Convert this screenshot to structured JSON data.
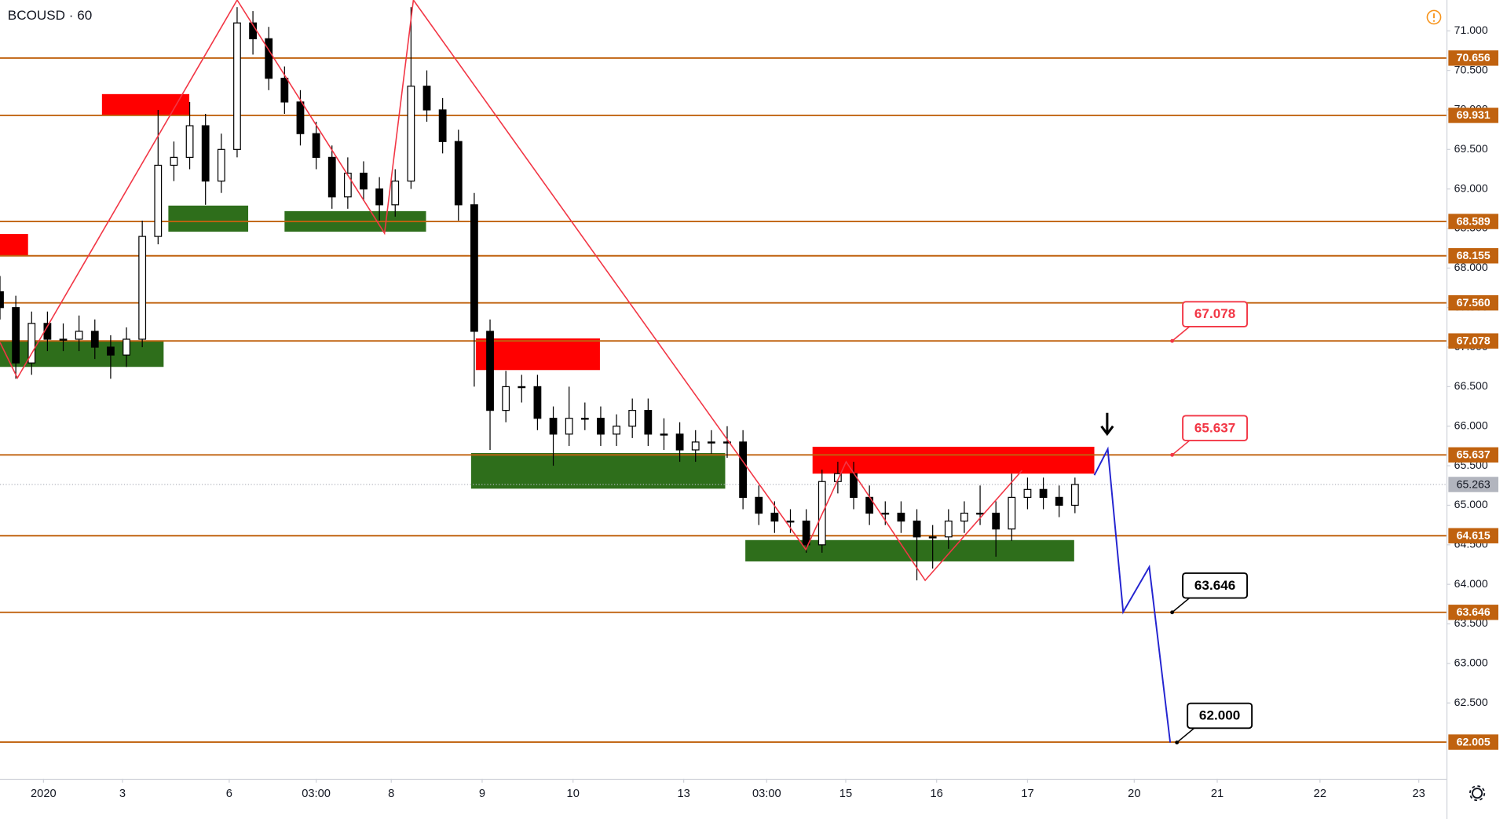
{
  "chart_data": {
    "type": "candlestick",
    "title": "BCOUSD · 60",
    "x": [
      0,
      4,
      8,
      12,
      16,
      20,
      24,
      28,
      32,
      36,
      40,
      44,
      48,
      52,
      56,
      60,
      64,
      68,
      72,
      76,
      80,
      84,
      88,
      92,
      96,
      100,
      104,
      108,
      112,
      116,
      120,
      124,
      128,
      132,
      136,
      140,
      144,
      148,
      152,
      156,
      160,
      164,
      168,
      172,
      176,
      180,
      184,
      188,
      192,
      196,
      200,
      204,
      208,
      212,
      216,
      220,
      224,
      228,
      232,
      236,
      240,
      244,
      248,
      252,
      256,
      260,
      264,
      268,
      272
    ],
    "open": [
      67.7,
      67.5,
      66.8,
      67.3,
      67.1,
      67.1,
      67.2,
      67.0,
      66.9,
      67.1,
      68.4,
      69.3,
      69.4,
      69.8,
      69.1,
      69.5,
      71.1,
      70.9,
      70.4,
      70.1,
      69.7,
      69.4,
      68.9,
      69.2,
      69.0,
      68.8,
      69.1,
      70.3,
      70.0,
      69.6,
      68.8,
      67.2,
      66.2,
      66.5,
      66.5,
      66.1,
      65.9,
      66.1,
      66.1,
      65.9,
      66.0,
      66.2,
      65.9,
      65.9,
      65.7,
      65.8,
      65.8,
      65.8,
      65.1,
      64.9,
      64.8,
      64.8,
      64.5,
      65.3,
      65.4,
      65.1,
      64.9,
      64.9,
      64.8,
      64.6,
      64.6,
      64.8,
      64.9,
      64.9,
      64.7,
      65.1,
      65.2,
      65.1,
      65.0
    ],
    "high": [
      67.9,
      67.65,
      67.45,
      67.45,
      67.3,
      67.4,
      67.35,
      67.15,
      67.25,
      68.6,
      70.0,
      69.6,
      70.1,
      69.95,
      69.7,
      71.3,
      71.25,
      71.05,
      70.55,
      70.25,
      69.85,
      69.55,
      69.4,
      69.35,
      69.15,
      69.25,
      71.3,
      70.5,
      70.15,
      69.75,
      68.95,
      67.35,
      66.7,
      66.65,
      66.65,
      66.25,
      66.5,
      66.3,
      66.25,
      66.15,
      66.35,
      66.35,
      66.1,
      66.05,
      65.95,
      65.95,
      66.0,
      65.95,
      65.25,
      65.05,
      64.95,
      64.95,
      65.45,
      65.55,
      65.55,
      65.25,
      65.05,
      65.05,
      64.95,
      64.75,
      64.95,
      65.05,
      65.25,
      65.05,
      65.4,
      65.35,
      65.35,
      65.25,
      65.35
    ],
    "low": [
      67.35,
      66.6,
      66.65,
      66.95,
      66.95,
      66.95,
      66.85,
      66.6,
      66.75,
      67.0,
      68.3,
      69.1,
      69.25,
      68.8,
      68.95,
      69.4,
      70.7,
      70.25,
      69.95,
      69.55,
      69.25,
      68.75,
      68.75,
      68.85,
      68.6,
      68.65,
      69.0,
      69.85,
      69.45,
      68.6,
      66.5,
      65.7,
      66.05,
      66.3,
      65.95,
      65.5,
      65.75,
      65.95,
      65.75,
      65.75,
      65.85,
      65.75,
      65.7,
      65.55,
      65.55,
      65.65,
      65.6,
      64.95,
      64.75,
      64.65,
      64.65,
      64.4,
      64.4,
      65.15,
      64.95,
      64.75,
      64.75,
      64.65,
      64.05,
      64.2,
      64.45,
      64.65,
      64.75,
      64.35,
      64.55,
      64.95,
      64.95,
      64.85,
      64.9
    ],
    "close": [
      67.5,
      66.8,
      67.3,
      67.1,
      67.1,
      67.2,
      67.0,
      66.9,
      67.1,
      68.4,
      69.3,
      69.4,
      69.8,
      69.1,
      69.5,
      71.1,
      70.9,
      70.4,
      70.1,
      69.7,
      69.4,
      68.9,
      69.2,
      69.0,
      68.8,
      69.1,
      70.3,
      70.0,
      69.6,
      68.8,
      67.2,
      66.2,
      66.5,
      66.5,
      66.1,
      65.9,
      66.1,
      66.1,
      65.9,
      66.0,
      66.2,
      65.9,
      65.9,
      65.7,
      65.8,
      65.8,
      65.8,
      65.1,
      64.9,
      64.8,
      64.8,
      64.5,
      65.3,
      65.4,
      65.1,
      64.9,
      64.9,
      64.8,
      64.6,
      64.6,
      64.8,
      64.9,
      64.9,
      64.7,
      65.1,
      65.2,
      65.1,
      65.0,
      65.263
    ],
    "up_color": "#ffffff",
    "down_color": "#000000",
    "xlim": [
      0,
      366
    ],
    "xticks": [
      {
        "value": 11,
        "label": "2020"
      },
      {
        "value": 31,
        "label": "3"
      },
      {
        "value": 58,
        "label": "6"
      },
      {
        "value": 80,
        "label": "03:00"
      },
      {
        "value": 99,
        "label": "8"
      },
      {
        "value": 122,
        "label": "9"
      },
      {
        "value": 145,
        "label": "10"
      },
      {
        "value": 173,
        "label": "13"
      },
      {
        "value": 194,
        "label": "03:00"
      },
      {
        "value": 214,
        "label": "15"
      },
      {
        "value": 237,
        "label": "16"
      },
      {
        "value": 260,
        "label": "17"
      },
      {
        "value": 287,
        "label": "20"
      },
      {
        "value": 308,
        "label": "21"
      },
      {
        "value": 334,
        "label": "22"
      },
      {
        "value": 359,
        "label": "23"
      }
    ],
    "ylim": [
      61.54,
      71.39
    ],
    "yticks": [
      {
        "value": 62.5,
        "label": "62.500"
      },
      {
        "value": 63,
        "label": "63.000"
      },
      {
        "value": 63.5,
        "label": "63.500"
      },
      {
        "value": 64,
        "label": "64.000"
      },
      {
        "value": 64.5,
        "label": "64.500"
      },
      {
        "value": 65,
        "label": "65.000"
      },
      {
        "value": 65.5,
        "label": "65.500"
      },
      {
        "value": 66,
        "label": "66.000"
      },
      {
        "value": 66.5,
        "label": "66.500"
      },
      {
        "value": 67,
        "label": "67.000"
      },
      {
        "value": 67.5,
        "label": "67.500"
      },
      {
        "value": 68,
        "label": "68.000"
      },
      {
        "value": 68.5,
        "label": "68.500"
      },
      {
        "value": 69,
        "label": "69.000"
      },
      {
        "value": 69.5,
        "label": "69.500"
      },
      {
        "value": 70,
        "label": "70.000"
      },
      {
        "value": 70.5,
        "label": "70.500"
      },
      {
        "value": 71,
        "label": "71.000"
      }
    ],
    "levels": [
      70.656,
      69.931,
      68.589,
      68.155,
      {
        "value": 67.56,
        "label": "67.560"
      },
      67.078,
      65.637,
      64.615,
      63.646,
      62.005
    ],
    "level_color": "#c0620f",
    "last_price": 65.263,
    "last_price_color": "#b2b5be",
    "zones": [
      {
        "color": "#ff0000",
        "x": [
          25.8,
          47.9
        ],
        "y": [
          69.94,
          70.2
        ]
      },
      {
        "color": "#ff0000",
        "x": [
          0,
          7.1
        ],
        "y": [
          68.15,
          68.43
        ]
      },
      {
        "color": "#2e6e1b",
        "x": [
          42.6,
          62.8
        ],
        "y": [
          68.46,
          68.79
        ]
      },
      {
        "color": "#2e6e1b",
        "x": [
          72,
          107.8
        ],
        "y": [
          68.46,
          68.72
        ]
      },
      {
        "color": "#2e6e1b",
        "x": [
          0,
          41.4
        ],
        "y": [
          66.75,
          67.08
        ]
      },
      {
        "color": "#ff0000",
        "x": [
          120.4,
          151.8
        ],
        "y": [
          66.71,
          67.11
        ]
      },
      {
        "color": "#2e6e1b",
        "x": [
          119.2,
          183.5
        ],
        "y": [
          65.21,
          65.66
        ]
      },
      {
        "color": "#ff0000",
        "x": [
          205.6,
          276.9
        ],
        "y": [
          65.4,
          65.74
        ]
      },
      {
        "color": "#2e6e1b",
        "x": [
          188.6,
          271.8
        ],
        "y": [
          64.29,
          64.56
        ]
      }
    ],
    "zigzag": {
      "color": "#f23645",
      "x": [
        0,
        4.4,
        60,
        97.3,
        104.6,
        203.9,
        214.1,
        234.1,
        258.6
      ],
      "y": [
        67.06,
        66.61,
        71.39,
        68.44,
        71.39,
        64.44,
        65.55,
        64.05,
        65.44
      ]
    },
    "projection": {
      "color": "#2424d0",
      "x": [
        276.9,
        280.3,
        284.2,
        290.8,
        296.1
      ],
      "y": [
        65.38,
        65.71,
        63.65,
        64.22,
        62.0
      ]
    },
    "callouts": [
      {
        "x": 296.6,
        "value": 67.078,
        "color": "#f23645"
      },
      {
        "x": 296.6,
        "value": 65.637,
        "color": "#f23645"
      },
      {
        "x": 296.6,
        "value": 63.646,
        "color": "#000000"
      },
      {
        "x": 297.8,
        "value": {
          "value": 62,
          "label": "62.000"
        },
        "color": "#000000"
      }
    ]
  }
}
